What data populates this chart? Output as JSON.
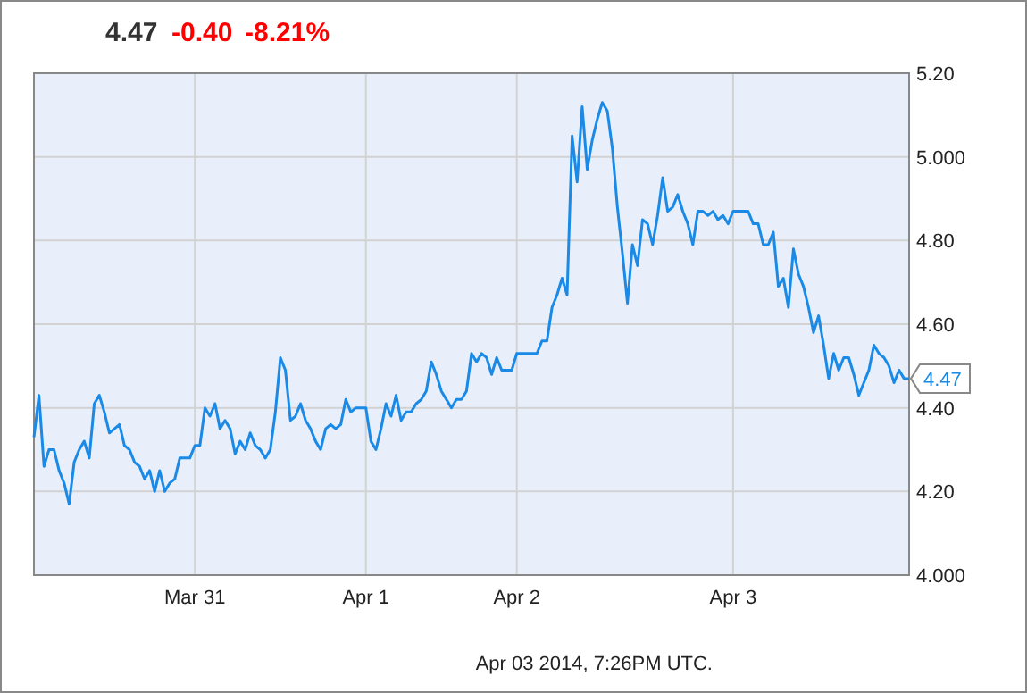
{
  "chart_data": {
    "type": "line",
    "title": "4.47",
    "annotations": [
      "-0.40",
      "-8.21%",
      {
        "text": "4.47",
        "y": 4.47
      },
      "Apr 03 2014, 7:26PM UTC."
    ],
    "categories": [
      null,
      null,
      null,
      null,
      null,
      null,
      null,
      null,
      null,
      null,
      null,
      null,
      null,
      null,
      null,
      null,
      null,
      null,
      null,
      null,
      null,
      null,
      null,
      null,
      null,
      null,
      null,
      null,
      null,
      null,
      null,
      null,
      "Mar 31",
      null,
      null,
      null,
      null,
      null,
      null,
      null,
      null,
      null,
      null,
      null,
      null,
      null,
      null,
      null,
      null,
      null,
      null,
      null,
      null,
      null,
      null,
      null,
      null,
      null,
      null,
      null,
      null,
      null,
      null,
      null,
      null,
      null,
      "Apr 1",
      null,
      null,
      null,
      null,
      null,
      null,
      null,
      null,
      null,
      null,
      null,
      null,
      null,
      null,
      null,
      null,
      null,
      null,
      null,
      null,
      null,
      null,
      null,
      null,
      null,
      null,
      null,
      null,
      null,
      "Apr 2",
      null,
      null,
      null,
      null,
      null,
      null,
      null,
      null,
      null,
      null,
      null,
      null,
      null,
      null,
      null,
      null,
      null,
      null,
      null,
      null,
      null,
      null,
      null,
      null,
      null,
      null,
      null,
      null,
      null,
      null,
      null,
      null,
      null,
      null,
      null,
      null,
      null,
      null,
      null,
      null,
      null,
      null,
      "Apr 3",
      null,
      null,
      null,
      null,
      null,
      null,
      null,
      null,
      null,
      null,
      null,
      null,
      null,
      null,
      null,
      null,
      null,
      null,
      null,
      null,
      null,
      null,
      null,
      null,
      null,
      null,
      null,
      null,
      null,
      null,
      null,
      null,
      null,
      null,
      null
    ],
    "series": [
      {
        "color": "#1a8ae6",
        "values": [
          4.33,
          4.43,
          4.26,
          4.3,
          4.3,
          4.25,
          4.22,
          4.17,
          4.27,
          4.3,
          4.32,
          4.28,
          4.41,
          4.43,
          4.39,
          4.34,
          4.35,
          4.36,
          4.31,
          4.3,
          4.27,
          4.26,
          4.23,
          4.25,
          4.2,
          4.25,
          4.2,
          4.22,
          4.23,
          4.28,
          4.28,
          4.28,
          4.31,
          4.31,
          4.4,
          4.38,
          4.41,
          4.35,
          4.37,
          4.35,
          4.29,
          4.32,
          4.3,
          4.34,
          4.31,
          4.3,
          4.28,
          4.3,
          4.39,
          4.52,
          4.49,
          4.37,
          4.38,
          4.41,
          4.37,
          4.35,
          4.32,
          4.3,
          4.35,
          4.36,
          4.35,
          4.36,
          4.42,
          4.39,
          4.4,
          4.4,
          4.4,
          4.32,
          4.3,
          4.35,
          4.41,
          4.38,
          4.43,
          4.37,
          4.39,
          4.39,
          4.41,
          4.42,
          4.44,
          4.51,
          4.48,
          4.44,
          4.42,
          4.4,
          4.42,
          4.42,
          4.44,
          4.53,
          4.51,
          4.53,
          4.52,
          4.48,
          4.52,
          4.49,
          4.49,
          4.49,
          4.53,
          4.53,
          4.53,
          4.53,
          4.53,
          4.56,
          4.56,
          4.64,
          4.67,
          4.71,
          4.67,
          5.05,
          4.94,
          5.12,
          4.97,
          5.04,
          5.09,
          5.13,
          5.11,
          5.02,
          4.88,
          4.77,
          4.65,
          4.79,
          4.74,
          4.85,
          4.84,
          4.79,
          4.86,
          4.95,
          4.87,
          4.88,
          4.91,
          4.87,
          4.84,
          4.79,
          4.87,
          4.87,
          4.86,
          4.87,
          4.85,
          4.86,
          4.84,
          4.87,
          4.87,
          4.87,
          4.87,
          4.84,
          4.84,
          4.79,
          4.79,
          4.82,
          4.69,
          4.71,
          4.64,
          4.78,
          4.72,
          4.69,
          4.64,
          4.58,
          4.62,
          4.55,
          4.47,
          4.53,
          4.49,
          4.52,
          4.52,
          4.48,
          4.43,
          4.46,
          4.49,
          4.55,
          4.53,
          4.52,
          4.5,
          4.46,
          4.49,
          4.47,
          4.47
        ]
      }
    ],
    "ylim": [
      4,
      5.2
    ],
    "yticks": [
      {
        "value": 4,
        "label": "4.000"
      },
      {
        "value": 4.2,
        "label": "4.20"
      },
      {
        "value": 4.4,
        "label": "4.40"
      },
      {
        "value": 4.6,
        "label": "4.60"
      },
      {
        "value": 4.8,
        "label": "4.80"
      },
      {
        "value": 5,
        "label": "5.000"
      },
      {
        "value": 5.2,
        "label": "5.20"
      }
    ],
    "grid": true,
    "marker": "none",
    "line_style": "solid"
  }
}
